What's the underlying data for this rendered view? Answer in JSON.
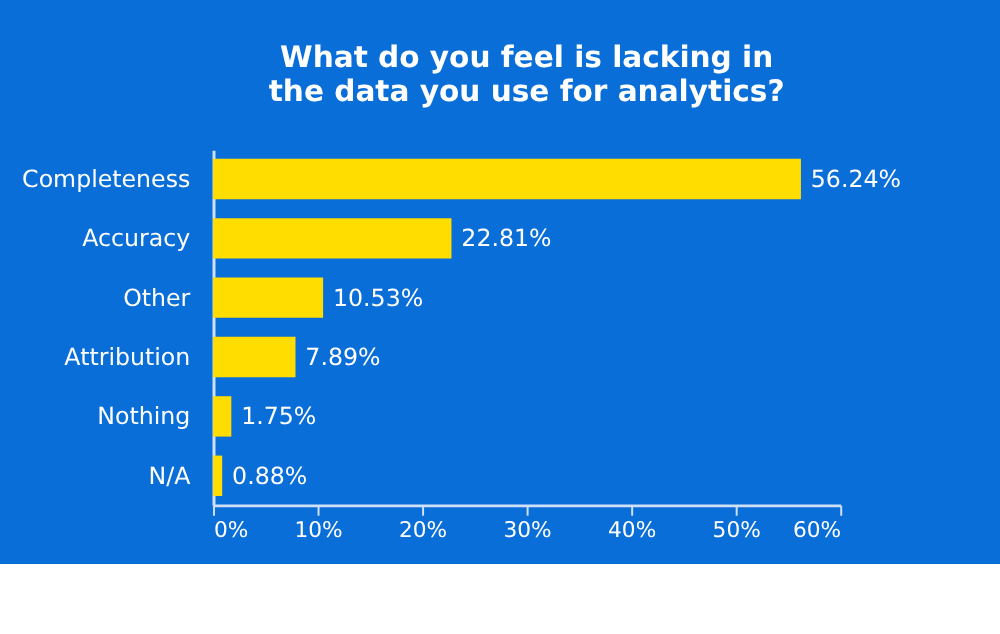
{
  "chart_data": {
    "type": "bar",
    "orientation": "horizontal",
    "title": [
      "What do you feel is lacking in",
      "the data you use for analytics?"
    ],
    "categories": [
      "Completeness",
      "Accuracy",
      "Other",
      "Attribution",
      "Nothing",
      "N/A"
    ],
    "values": [
      56.24,
      22.81,
      10.53,
      7.89,
      1.75,
      0.88
    ],
    "value_labels": [
      "56.24%",
      "22.81%",
      "10.53%",
      "7.89%",
      "1.75%",
      "0.88%"
    ],
    "color": "#ffdd00",
    "xlim": [
      0,
      60
    ],
    "xticks": [
      {
        "value": 0,
        "label": "0%"
      },
      {
        "value": 10,
        "label": "10%"
      },
      {
        "value": 20,
        "label": "20%"
      },
      {
        "value": 30,
        "label": "30%"
      },
      {
        "value": 40,
        "label": "40%"
      },
      {
        "value": 50,
        "label": "50%"
      },
      {
        "value": 60,
        "label": "60%"
      }
    ],
    "grid": false
  }
}
